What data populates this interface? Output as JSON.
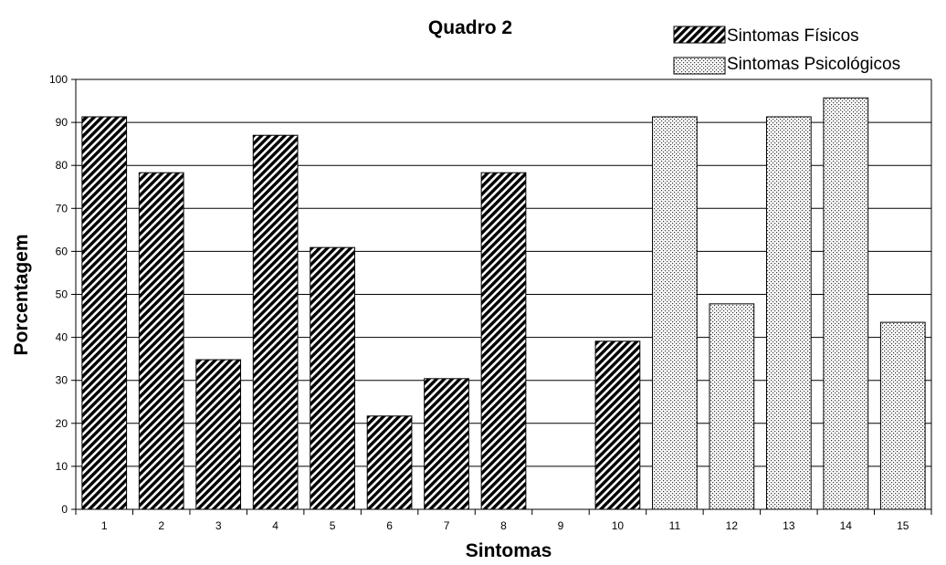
{
  "chart_data": {
    "type": "bar",
    "title": "Quadro 2",
    "xlabel": "Sintomas",
    "ylabel": "Porcentagem",
    "ylim": [
      0,
      100
    ],
    "yticks": [
      "0",
      "10",
      "20",
      "30",
      "40",
      "50",
      "60",
      "70",
      "80",
      "90",
      "100"
    ],
    "categories": [
      "1",
      "2",
      "3",
      "4",
      "5",
      "6",
      "7",
      "8",
      "9",
      "10",
      "11",
      "12",
      "13",
      "14",
      "15"
    ],
    "series": [
      {
        "name": "Sintomas Físicos",
        "pattern": "diagonal-hatch",
        "values": [
          91.3,
          78.3,
          34.8,
          87.0,
          60.9,
          21.7,
          30.4,
          78.3,
          0,
          39.1,
          null,
          null,
          null,
          null,
          null
        ]
      },
      {
        "name": "Sintomas Psicológicos",
        "pattern": "dots",
        "values": [
          null,
          null,
          null,
          null,
          null,
          null,
          null,
          null,
          null,
          null,
          91.3,
          47.8,
          91.3,
          95.7,
          43.5
        ]
      }
    ],
    "grid": true,
    "legend": "top-right",
    "colors": {
      "bar_fill_base": "#ffffff",
      "pattern": "#000000",
      "gridline": "#000000"
    }
  }
}
